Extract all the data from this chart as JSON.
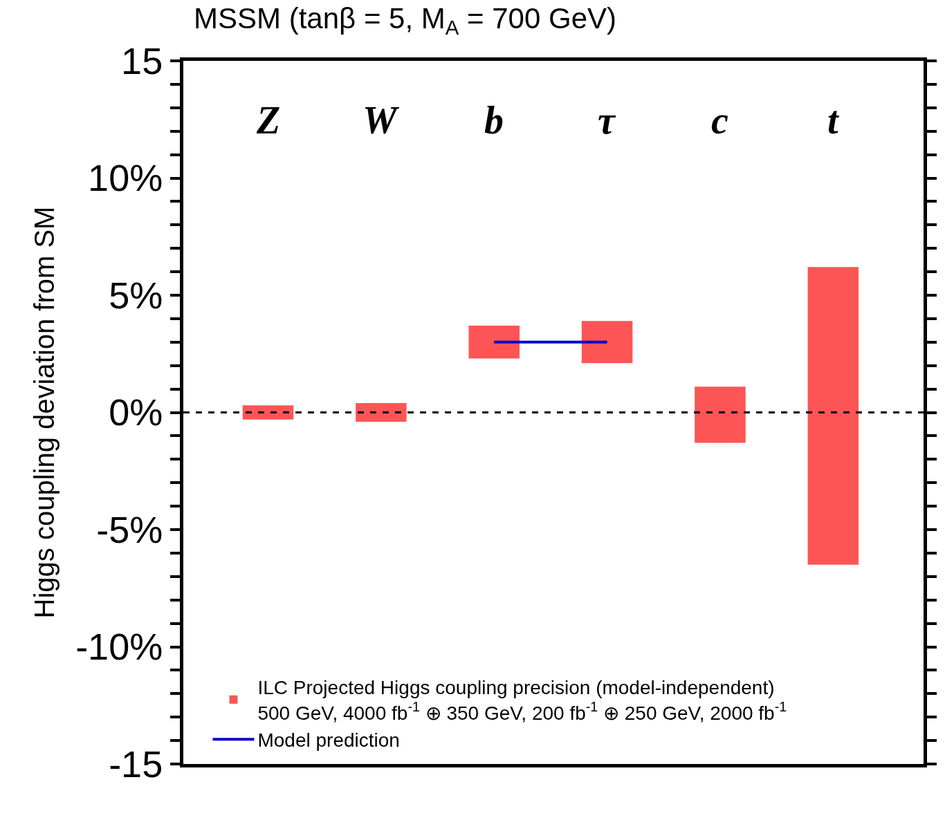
{
  "chart_data": {
    "type": "bar",
    "title": "MSSM (tanβ = 5, M$_{A}$ = 700 GeV)",
    "ylabel": "Higgs coupling deviation from SM",
    "categories": [
      "Z",
      "W",
      "b",
      "τ",
      "c",
      "t"
    ],
    "series": [
      {
        "name": "ILC Projected Higgs coupling precision (model-independent)\n500 GeV, 4000 fb$^{-1}$ ⊕ 350 GeV, 200 fb$^{-1}$ ⊕ 250 GeV, 2000 fb$^{-1}$",
        "color": "#fd5555",
        "values": [
          0.6,
          0.8,
          1.4,
          1.8,
          2.4,
          12.7
        ],
        "base": [
          -0.3,
          -0.4,
          2.3,
          2.1,
          -1.3,
          -6.5
        ]
      },
      {
        "name": "Model prediction",
        "type": "line",
        "color": "#0000cc",
        "x": [
          "b",
          "τ"
        ],
        "values": [
          3.0,
          3.0
        ]
      }
    ],
    "ylim": [
      -15,
      15
    ],
    "yticks": [
      {
        "value": -15,
        "label": "-15"
      },
      {
        "value": -14,
        "label": null
      },
      {
        "value": -13,
        "label": null
      },
      {
        "value": -12,
        "label": null
      },
      {
        "value": -11,
        "label": null
      },
      {
        "value": -10,
        "label": "-10%"
      },
      {
        "value": -9,
        "label": null
      },
      {
        "value": -8,
        "label": null
      },
      {
        "value": -7,
        "label": null
      },
      {
        "value": -6,
        "label": null
      },
      {
        "value": -5,
        "label": "-5%"
      },
      {
        "value": -4,
        "label": null
      },
      {
        "value": -3,
        "label": null
      },
      {
        "value": -2,
        "label": null
      },
      {
        "value": -1,
        "label": null
      },
      {
        "value": 0,
        "label": "0%"
      },
      {
        "value": 1,
        "label": null
      },
      {
        "value": 2,
        "label": null
      },
      {
        "value": 3,
        "label": null
      },
      {
        "value": 4,
        "label": null
      },
      {
        "value": 5,
        "label": "5%"
      },
      {
        "value": 6,
        "label": null
      },
      {
        "value": 7,
        "label": null
      },
      {
        "value": 8,
        "label": null
      },
      {
        "value": 9,
        "label": null
      },
      {
        "value": 10,
        "label": "10%"
      },
      {
        "value": 11,
        "label": null
      },
      {
        "value": 12,
        "label": null
      },
      {
        "value": 13,
        "label": null
      },
      {
        "value": 14,
        "label": null
      },
      {
        "value": 15,
        "label": "15"
      }
    ],
    "ref_lines": [
      {
        "axis": "y",
        "value": 0,
        "label": null,
        "color": "#000000",
        "line_style": "dashed"
      }
    ],
    "legend": "bottom left"
  }
}
